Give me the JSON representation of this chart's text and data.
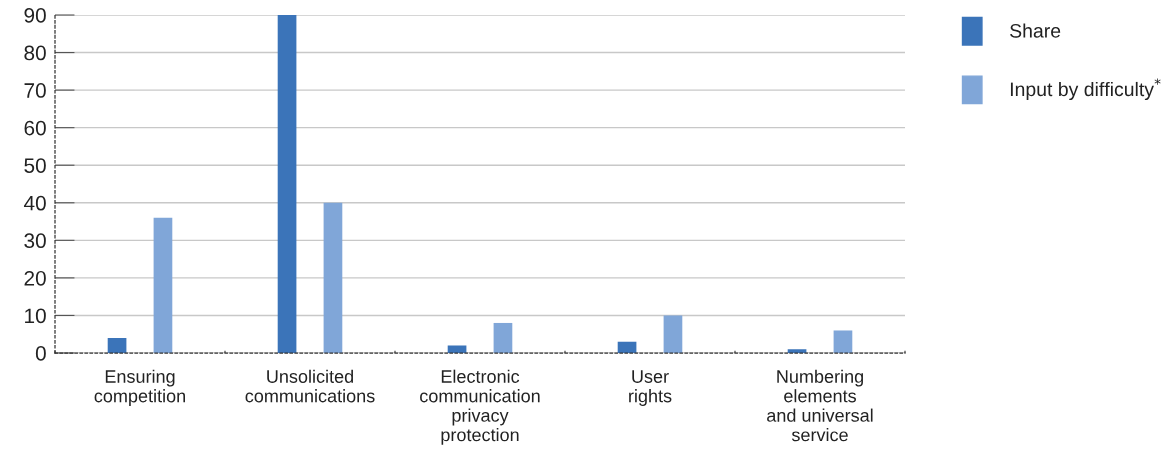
{
  "chart_data": {
    "type": "bar",
    "categories": [
      "Ensuring\ncompetition",
      "Unsolicited\ncommunications",
      "Electronic\ncommunication\nprivacy\nprotection",
      "User\nrights",
      "Numbering\nelements\nand universal\nservice"
    ],
    "series": [
      {
        "name": "Share",
        "color": "#3b74b9",
        "values": [
          4,
          90,
          2,
          3,
          1
        ]
      },
      {
        "name": "Input by difficulty$^{*}$",
        "color": "#80a6d8",
        "values": [
          36,
          40,
          8,
          10,
          6
        ]
      }
    ],
    "ylim": [
      0,
      90
    ],
    "yticks": [
      0,
      10,
      20,
      30,
      40,
      50,
      60,
      70,
      80,
      90
    ],
    "grid": "y",
    "legend": "top right"
  }
}
